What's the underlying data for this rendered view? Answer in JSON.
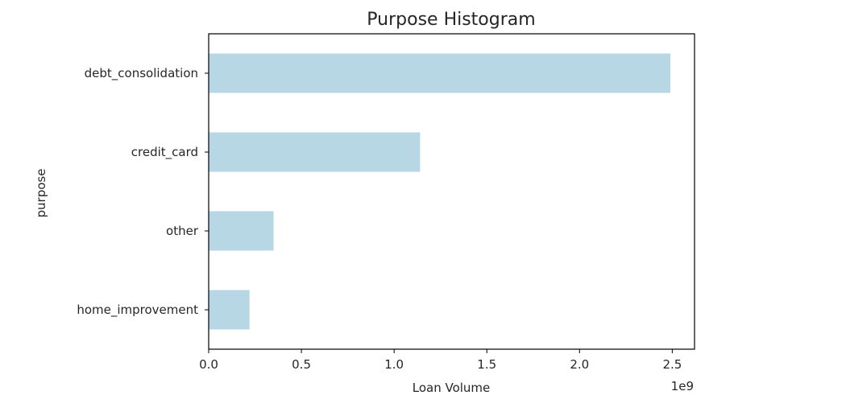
{
  "chart_data": {
    "type": "bar",
    "orientation": "horizontal",
    "title": "Purpose Histogram",
    "xlabel": "Loan Volume",
    "ylabel": "purpose",
    "x_scale_label": "1e9",
    "categories": [
      "debt_consolidation",
      "credit_card",
      "other",
      "home_improvement"
    ],
    "values": [
      2.49,
      1.14,
      0.35,
      0.22
    ],
    "value_units": "1e9",
    "xlim": [
      0,
      2.62
    ],
    "xticks": [
      0.0,
      0.5,
      1.0,
      1.5,
      2.0,
      2.5
    ],
    "xtick_labels": [
      "0.0",
      "0.5",
      "1.0",
      "1.5",
      "2.0",
      "2.5"
    ],
    "bar_color": "#b7d7e5",
    "grid": false,
    "legend": "none"
  }
}
